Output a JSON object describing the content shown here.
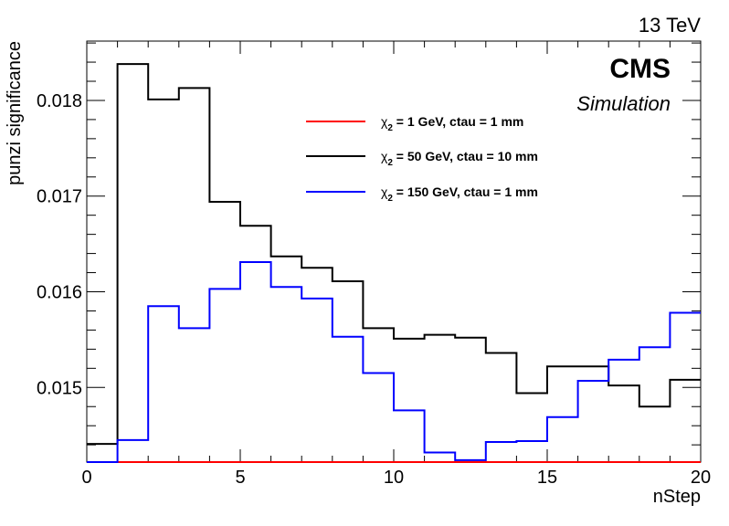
{
  "chart_data": {
    "type": "line",
    "style": "step-histogram",
    "energy_label": "13 TeV",
    "experiment_label": "CMS",
    "status_label": "Simulation",
    "xlabel": "nStep",
    "ylabel": "punzi significance",
    "xlim": [
      0,
      20
    ],
    "ylim": [
      0.01422,
      0.01862
    ],
    "x_ticks": [
      0,
      5,
      10,
      15,
      20
    ],
    "y_ticks": [
      0.015,
      0.016,
      0.017,
      0.018
    ],
    "y_tick_labels": [
      "0.015",
      "0.016",
      "0.017",
      "0.018"
    ],
    "bin_edges": [
      0,
      1,
      2,
      3,
      4,
      5,
      6,
      7,
      8,
      9,
      10,
      11,
      12,
      13,
      14,
      15,
      16,
      17,
      18,
      19,
      20
    ],
    "legend_position": "top-center",
    "series": [
      {
        "name_prefix": "χ",
        "name_subscript": "2",
        "name_suffix": " = 1 GeV, ctau = 1 mm",
        "color": "#ff0000",
        "values": [
          0.0142,
          0.0142,
          0.0142,
          0.0142,
          0.0142,
          0.0142,
          0.0142,
          0.0142,
          0.0142,
          0.0142,
          0.0142,
          0.0142,
          0.0142,
          0.0142,
          0.0142,
          0.0142,
          0.0142,
          0.0142,
          0.0142,
          0.0142
        ]
      },
      {
        "name_prefix": "χ",
        "name_subscript": "2",
        "name_suffix": " = 50 GeV, ctau = 10 mm",
        "color": "#000000",
        "values": [
          0.01441,
          0.01838,
          0.01801,
          0.01813,
          0.01694,
          0.01669,
          0.01637,
          0.01625,
          0.01611,
          0.01562,
          0.01551,
          0.01555,
          0.01552,
          0.01536,
          0.01494,
          0.01522,
          0.01522,
          0.01502,
          0.0148,
          0.01508
        ]
      },
      {
        "name_prefix": "χ",
        "name_subscript": "2",
        "name_suffix": " = 150 GeV, ctau = 1 mm",
        "color": "#0000ff",
        "values": [
          0.0142,
          0.01445,
          0.01585,
          0.01562,
          0.01603,
          0.01631,
          0.01605,
          0.01593,
          0.01553,
          0.01515,
          0.01476,
          0.01432,
          0.01424,
          0.01443,
          0.01444,
          0.01469,
          0.01507,
          0.01529,
          0.01542,
          0.01578
        ]
      }
    ]
  }
}
